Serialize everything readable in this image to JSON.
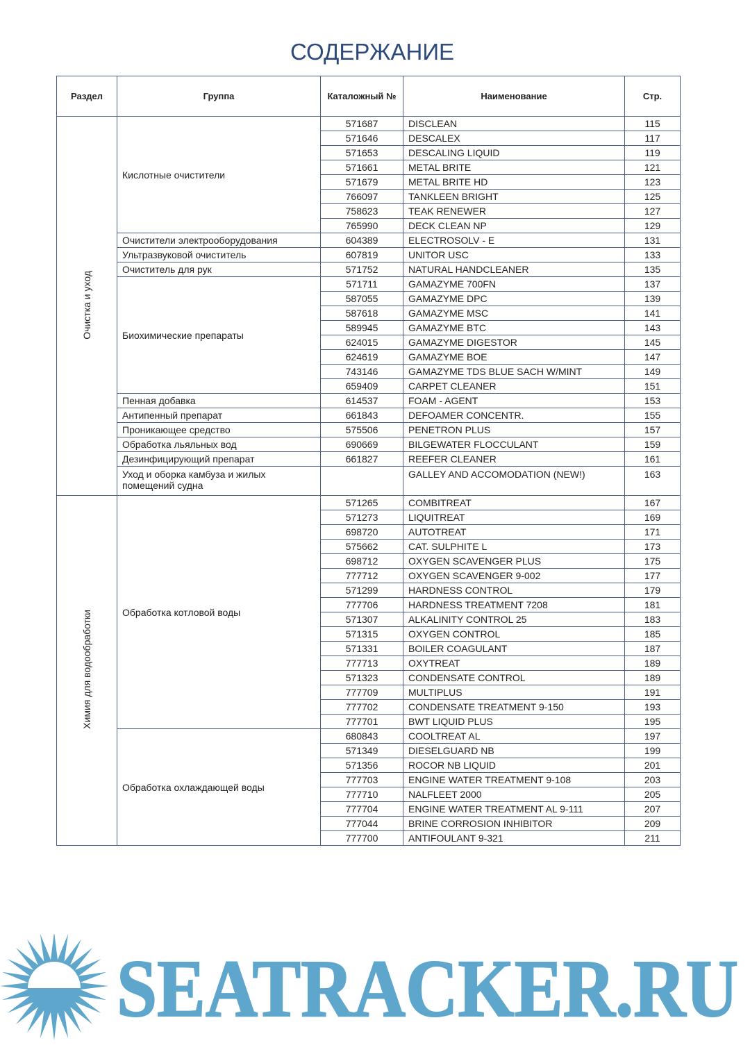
{
  "title": "СОДЕРЖАНИЕ",
  "headers": {
    "section": "Раздел",
    "group": "Группа",
    "catalog": "Каталожный №",
    "name": "Наименование",
    "page": "Стр."
  },
  "sections": [
    {
      "label": "Очистка и уход",
      "groups": [
        {
          "label": "Кислотные очистители",
          "items": [
            [
              "571687",
              "DISCLEAN",
              "115"
            ],
            [
              "571646",
              "DESCALEX",
              "117"
            ],
            [
              "571653",
              "DESCALING LIQUID",
              "119"
            ],
            [
              "571661",
              "METAL BRITE",
              "121"
            ],
            [
              "571679",
              "METAL BRITE HD",
              "123"
            ],
            [
              "766097",
              "TANKLEEN BRIGHT",
              "125"
            ],
            [
              "758623",
              "TEAK RENEWER",
              "127"
            ],
            [
              "765990",
              "DECK CLEAN NP",
              "129"
            ]
          ]
        },
        {
          "label": "Очистители электрооборудования",
          "items": [
            [
              "604389",
              "ELECTROSOLV - E",
              "131"
            ]
          ]
        },
        {
          "label": "Ультразвуковой очиститель",
          "items": [
            [
              "607819",
              "UNITOR USC",
              "133"
            ]
          ]
        },
        {
          "label": "Очиститель для рук",
          "items": [
            [
              "571752",
              "NATURAL HANDCLEANER",
              "135"
            ]
          ]
        },
        {
          "label": "Биохимические препараты",
          "items": [
            [
              "571711",
              "GAMAZYME 700FN",
              "137"
            ],
            [
              "587055",
              "GAMAZYME DPC",
              "139"
            ],
            [
              "587618",
              "GAMAZYME MSC",
              "141"
            ],
            [
              "589945",
              "GAMAZYME BTC",
              "143"
            ],
            [
              "624015",
              "GAMAZYME DIGESTOR",
              "145"
            ],
            [
              "624619",
              "GAMAZYME BOE",
              "147"
            ],
            [
              "743146",
              "GAMAZYME TDS BLUE SACH W/MINT",
              "149"
            ],
            [
              "659409",
              "CARPET CLEANER",
              "151"
            ]
          ]
        },
        {
          "label": "Пенная добавка",
          "items": [
            [
              "614537",
              "FOAM - AGENT",
              "153"
            ]
          ]
        },
        {
          "label": "Антипенный препарат",
          "items": [
            [
              "661843",
              "DEFOAMER CONCENTR.",
              "155"
            ]
          ]
        },
        {
          "label": "Проникающее средство",
          "items": [
            [
              "575506",
              "PENETRON PLUS",
              "157"
            ]
          ]
        },
        {
          "label": "Обработка льяльных вод",
          "items": [
            [
              "690669",
              "BILGEWATER FLOCCULANT",
              "159"
            ]
          ]
        },
        {
          "label": "Дезинфицирующий препарат",
          "items": [
            [
              "661827",
              "REEFER CLEANER",
              "161"
            ]
          ]
        },
        {
          "label": "Уход и оборка камбуза и жилых помещений судна",
          "items": [
            [
              "",
              "GALLEY AND ACCOMODATION (NEW!)",
              "163"
            ]
          ]
        }
      ]
    },
    {
      "label": "Химия для водообработки",
      "groups": [
        {
          "label": "Обработка котловой воды",
          "items": [
            [
              "571265",
              "COMBITREAT",
              "167"
            ],
            [
              "571273",
              "LIQUITREAT",
              "169"
            ],
            [
              "698720",
              "AUTOTREAT",
              "171"
            ],
            [
              "575662",
              "CAT. SULPHITE L",
              "173"
            ],
            [
              "698712",
              "OXYGEN SCAVENGER PLUS",
              "175"
            ],
            [
              "777712",
              "OXYGEN SCAVENGER 9-002",
              "177"
            ],
            [
              "571299",
              "HARDNESS CONTROL",
              "179"
            ],
            [
              "777706",
              "HARDNESS TREATMENT 7208",
              "181"
            ],
            [
              "571307",
              "ALKALINITY CONTROL 25",
              "183"
            ],
            [
              "571315",
              "OXYGEN CONTROL",
              "185"
            ],
            [
              "571331",
              "BOILER COAGULANT",
              "187"
            ],
            [
              "777713",
              "OXYTREAT",
              "189"
            ],
            [
              "571323",
              "CONDENSATE CONTROL",
              "189"
            ],
            [
              "777709",
              "MULTIPLUS",
              "191"
            ],
            [
              "777702",
              "CONDENSATE TREATMENT 9-150",
              "193"
            ],
            [
              "777701",
              "BWT LIQUID PLUS",
              "195"
            ]
          ]
        },
        {
          "label": "Обработка охлаждающей воды",
          "items": [
            [
              "680843",
              "COOLTREAT AL",
              "197"
            ],
            [
              "571349",
              "DIESELGUARD NB",
              "199"
            ],
            [
              "571356",
              "ROCOR NB LIQUID",
              "201"
            ],
            [
              "777703",
              "ENGINE WATER TREATMENT 9-108",
              "203"
            ],
            [
              "777710",
              "NALFLEET 2000",
              "205"
            ],
            [
              "777704",
              "ENGINE WATER TREATMENT AL 9-111",
              "207"
            ],
            [
              "777044",
              "BRINE CORROSION INHIBITOR",
              "209"
            ],
            [
              "777700",
              "ANTIFOULANT 9-321",
              "211"
            ]
          ]
        }
      ]
    }
  ],
  "watermark": {
    "text": "SEATRACKER.RU",
    "color": "#5ea6cc"
  }
}
